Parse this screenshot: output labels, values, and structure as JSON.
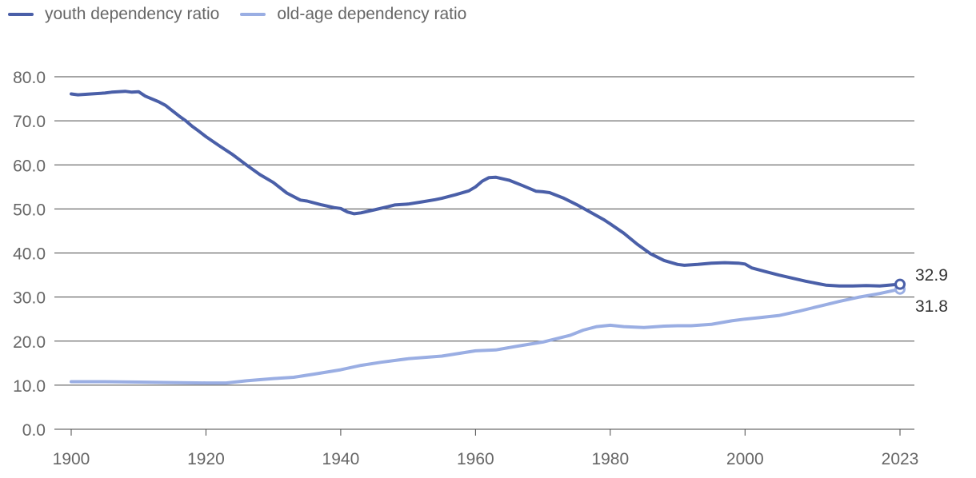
{
  "chart_data": {
    "type": "line",
    "title": "",
    "xlabel": "",
    "ylabel": "",
    "xlim": [
      1900,
      2023
    ],
    "ylim": [
      0,
      80
    ],
    "grid": true,
    "legend_position": "top-left",
    "y_ticks": [
      "0.0",
      "10.0",
      "20.0",
      "30.0",
      "40.0",
      "50.0",
      "60.0",
      "70.0",
      "80.0"
    ],
    "x_ticks": [
      "1900",
      "1920",
      "1940",
      "1960",
      "1980",
      "2000",
      "2023"
    ],
    "colors": {
      "youth": "#4a5fa8",
      "old_age": "#9aaee3",
      "grid": "#4a4a4a",
      "tick_text": "#666666"
    },
    "series": [
      {
        "name": "youth dependency ratio",
        "end_label": "32.9",
        "x": [
          1900,
          1901,
          1903,
          1905,
          1906,
          1908,
          1909,
          1910,
          1911,
          1913,
          1914,
          1915,
          1916,
          1917,
          1918,
          1919,
          1920,
          1922,
          1924,
          1926,
          1928,
          1930,
          1932,
          1934,
          1935,
          1937,
          1939,
          1940,
          1941,
          1942,
          1943,
          1945,
          1947,
          1948,
          1950,
          1952,
          1954,
          1955,
          1957,
          1959,
          1960,
          1961,
          1962,
          1963,
          1965,
          1967,
          1969,
          1970,
          1971,
          1973,
          1975,
          1977,
          1979,
          1980,
          1982,
          1984,
          1986,
          1988,
          1990,
          1991,
          1993,
          1995,
          1997,
          1999,
          2000,
          2001,
          2003,
          2005,
          2007,
          2009,
          2011,
          2012,
          2014,
          2016,
          2018,
          2020,
          2022,
          2023
        ],
        "values": [
          76.1,
          75.9,
          76.1,
          76.3,
          76.5,
          76.7,
          76.5,
          76.6,
          75.6,
          74.3,
          73.5,
          72.3,
          71.1,
          70.0,
          68.7,
          67.6,
          66.4,
          64.3,
          62.3,
          60.0,
          57.8,
          56.0,
          53.6,
          52.0,
          51.8,
          51.0,
          50.3,
          50.1,
          49.3,
          48.9,
          49.1,
          49.8,
          50.5,
          50.9,
          51.1,
          51.6,
          52.1,
          52.4,
          53.2,
          54.1,
          55.0,
          56.3,
          57.1,
          57.2,
          56.5,
          55.3,
          54.0,
          53.9,
          53.7,
          52.5,
          51.0,
          49.3,
          47.6,
          46.6,
          44.5,
          42.0,
          39.8,
          38.3,
          37.4,
          37.2,
          37.4,
          37.7,
          37.8,
          37.7,
          37.5,
          36.6,
          35.8,
          35.0,
          34.3,
          33.6,
          33.0,
          32.7,
          32.5,
          32.5,
          32.6,
          32.5,
          32.8,
          32.9
        ]
      },
      {
        "name": "old-age dependency ratio",
        "end_label": "31.8",
        "x": [
          1900,
          1905,
          1910,
          1915,
          1920,
          1923,
          1926,
          1930,
          1933,
          1936,
          1940,
          1943,
          1946,
          1950,
          1955,
          1960,
          1963,
          1966,
          1970,
          1974,
          1976,
          1978,
          1980,
          1982,
          1985,
          1988,
          1990,
          1992,
          1995,
          1998,
          2000,
          2002,
          2005,
          2008,
          2011,
          2014,
          2017,
          2020,
          2023
        ],
        "values": [
          10.8,
          10.8,
          10.7,
          10.6,
          10.5,
          10.5,
          11.0,
          11.5,
          11.8,
          12.5,
          13.5,
          14.5,
          15.2,
          16.0,
          16.6,
          17.8,
          18.0,
          18.8,
          19.8,
          21.3,
          22.5,
          23.3,
          23.6,
          23.3,
          23.1,
          23.4,
          23.5,
          23.5,
          23.8,
          24.6,
          25.0,
          25.3,
          25.8,
          26.8,
          27.9,
          29.0,
          30.0,
          30.8,
          31.8
        ]
      }
    ]
  }
}
